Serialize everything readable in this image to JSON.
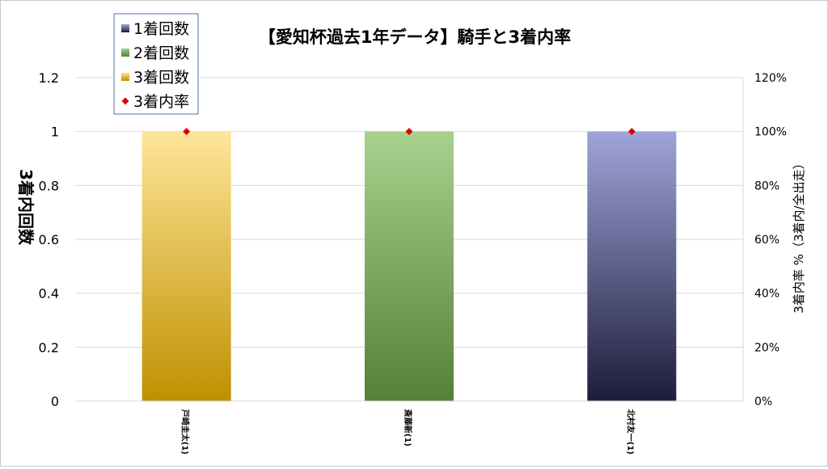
{
  "chart_data": {
    "type": "bar",
    "title": "【愛知杯過去1年データ】騎手と3着内率",
    "ylabel": "3着内回数",
    "y2label": "3着内率 %（3着内/全出走）",
    "ylim": [
      0,
      1.2
    ],
    "y2lim": [
      0,
      1.2
    ],
    "yticks": [
      "0",
      "0.2",
      "0.4",
      "0.6",
      "0.8",
      "1",
      "1.2"
    ],
    "y2ticks": [
      "0%",
      "20%",
      "40%",
      "60%",
      "80%",
      "100%",
      "120%"
    ],
    "grid": true,
    "legend_position": "top-left",
    "categories": [
      "戸崎圭太(1)",
      "斎藤新(1)",
      "北村友一(1)"
    ],
    "series": [
      {
        "name": "1着回数",
        "type": "bar",
        "values": [
          0,
          0,
          1
        ],
        "color_top": "#9fa5d8",
        "color_bottom": "#1c1c3a"
      },
      {
        "name": "2着回数",
        "type": "bar",
        "values": [
          0,
          1,
          0
        ],
        "color_top": "#a9d18e",
        "color_bottom": "#538135"
      },
      {
        "name": "3着回数",
        "type": "bar",
        "values": [
          1,
          0,
          0
        ],
        "color_top": "#ffe699",
        "color_bottom": "#bf9000"
      },
      {
        "name": "3着内率",
        "type": "marker",
        "axis": "right",
        "values": [
          1.0,
          1.0,
          1.0
        ],
        "color": "#e00000"
      }
    ]
  }
}
